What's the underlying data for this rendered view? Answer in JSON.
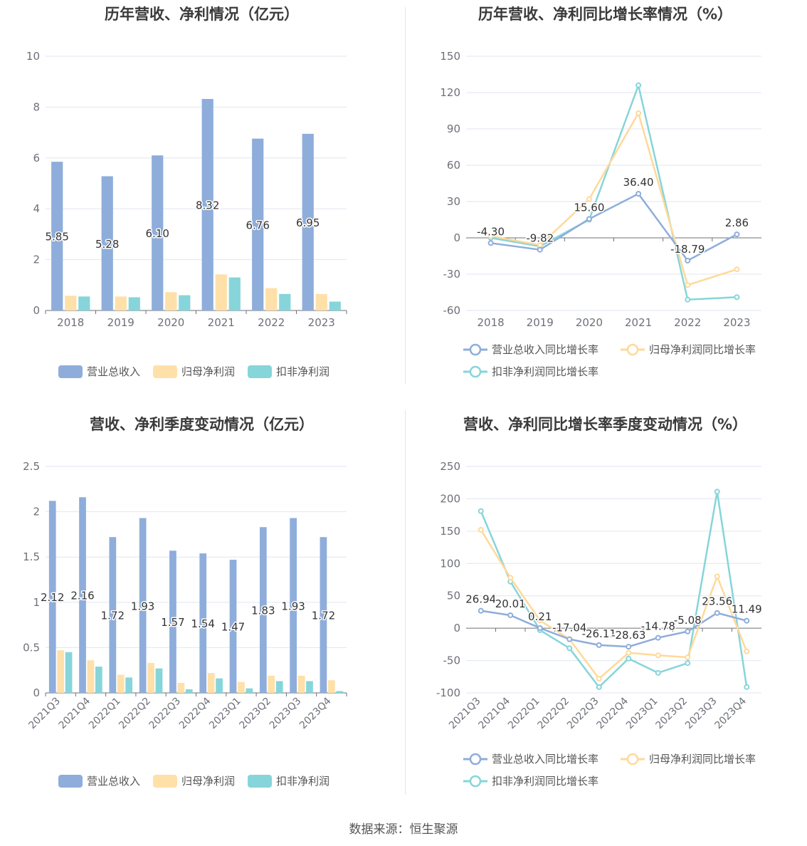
{
  "source": "数据来源：恒生聚源",
  "chart_data": [
    {
      "id": "annual-bar",
      "type": "bar",
      "title": "历年营收、净利情况（亿元）",
      "categories": [
        "2018",
        "2019",
        "2020",
        "2021",
        "2022",
        "2023"
      ],
      "ylim": [
        0,
        10
      ],
      "yticks": [
        0,
        2,
        4,
        6,
        8,
        10
      ],
      "grid": true,
      "legend_position": "bottom",
      "series": [
        {
          "name": "营业总收入",
          "color": "#8EADDB",
          "values": [
            5.85,
            5.28,
            6.1,
            8.32,
            6.76,
            6.95
          ],
          "labels": [
            "5.85",
            "5.28",
            "6.10",
            "8.32",
            "6.76",
            "6.95"
          ]
        },
        {
          "name": "归母净利润",
          "color": "#FFE0A8",
          "values": [
            0.58,
            0.55,
            0.72,
            1.42,
            0.88,
            0.65
          ]
        },
        {
          "name": "扣非净利润",
          "color": "#86D5DA",
          "values": [
            0.55,
            0.52,
            0.6,
            1.3,
            0.65,
            0.35
          ]
        }
      ]
    },
    {
      "id": "annual-line",
      "type": "line",
      "title": "历年营收、净利同比增长率情况（%）",
      "categories": [
        "2018",
        "2019",
        "2020",
        "2021",
        "2022",
        "2023"
      ],
      "ylim": [
        -60,
        150
      ],
      "yticks": [
        -60,
        -30,
        0,
        30,
        60,
        90,
        120,
        150
      ],
      "grid": true,
      "legend_position": "bottom",
      "series": [
        {
          "name": "营业总收入同比增长率",
          "color": "#8EADDB",
          "values": [
            -4.3,
            -9.82,
            15.6,
            36.4,
            -18.79,
            2.86
          ],
          "labels": [
            "-4.30",
            "-9.82",
            "15.60",
            "36.40",
            "-18.79",
            "2.86"
          ]
        },
        {
          "name": "归母净利润同比增长率",
          "color": "#FFD999",
          "values": [
            1.5,
            -6,
            32,
            103,
            -39,
            -26
          ]
        },
        {
          "name": "扣非净利润同比增长率",
          "color": "#86D5DA",
          "values": [
            0,
            -7,
            15,
            126,
            -51,
            -49
          ]
        }
      ]
    },
    {
      "id": "quarter-bar",
      "type": "bar",
      "title": "营收、净利季度变动情况（亿元）",
      "categories": [
        "2021Q3",
        "2021Q4",
        "2022Q1",
        "2022Q2",
        "2022Q3",
        "2022Q4",
        "2023Q1",
        "2023Q2",
        "2023Q3",
        "2023Q4"
      ],
      "ylim": [
        0,
        2.5
      ],
      "yticks": [
        0,
        0.5,
        1,
        1.5,
        2,
        2.5
      ],
      "grid": true,
      "legend_position": "bottom",
      "series": [
        {
          "name": "营业总收入",
          "color": "#8EADDB",
          "values": [
            2.12,
            2.16,
            1.72,
            1.93,
            1.57,
            1.54,
            1.47,
            1.83,
            1.93,
            1.72
          ],
          "labels": [
            "2.12",
            "2.16",
            "1.72",
            "1.93",
            "1.57",
            "1.54",
            "1.47",
            "1.83",
            "1.93",
            "1.72"
          ]
        },
        {
          "name": "归母净利润",
          "color": "#FFE0A8",
          "values": [
            0.47,
            0.36,
            0.2,
            0.33,
            0.11,
            0.22,
            0.12,
            0.19,
            0.19,
            0.14
          ]
        },
        {
          "name": "扣非净利润",
          "color": "#86D5DA",
          "values": [
            0.45,
            0.29,
            0.17,
            0.27,
            0.04,
            0.16,
            0.05,
            0.13,
            0.13,
            0.02
          ]
        }
      ]
    },
    {
      "id": "quarter-line",
      "type": "line",
      "title": "营收、净利同比增长率季度变动情况（%）",
      "categories": [
        "2021Q3",
        "2021Q4",
        "2022Q1",
        "2022Q2",
        "2022Q3",
        "2022Q4",
        "2023Q1",
        "2023Q2",
        "2023Q3",
        "2023Q4"
      ],
      "ylim": [
        -100,
        250
      ],
      "yticks": [
        -100,
        -50,
        0,
        50,
        100,
        150,
        200,
        250
      ],
      "grid": true,
      "legend_position": "bottom",
      "series": [
        {
          "name": "营业总收入同比增长率",
          "color": "#8EADDB",
          "values": [
            26.94,
            20.01,
            0.21,
            -17.04,
            -26.11,
            -28.63,
            -14.78,
            -5.08,
            23.56,
            11.49
          ],
          "labels": [
            "26.94",
            "20.01",
            "0.21",
            "-17.04",
            "-26.11",
            "-28.63",
            "-14.78",
            "-5.08",
            "23.56",
            "11.49"
          ]
        },
        {
          "name": "归母净利润同比增长率",
          "color": "#FFD999",
          "values": [
            152,
            78,
            12,
            -17,
            -78,
            -38,
            -42,
            -45,
            80,
            -36
          ]
        },
        {
          "name": "扣非净利润同比增长率",
          "color": "#86D5DA",
          "values": [
            181,
            72,
            -3,
            -31,
            -91,
            -47,
            -69,
            -54,
            211,
            -91
          ]
        }
      ]
    }
  ]
}
